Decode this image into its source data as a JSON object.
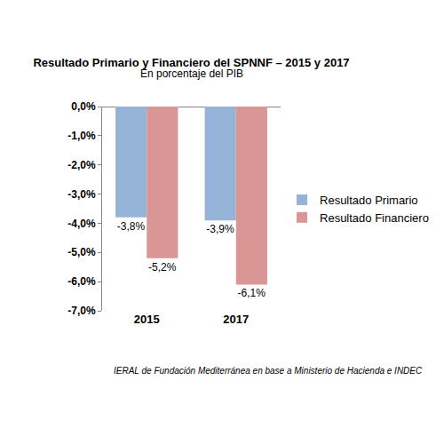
{
  "chart_data": {
    "type": "bar",
    "title": "Resultado Primario y Financiero del SPNNF – 2015 y 2017",
    "subtitle": "En porcentaje del PIB",
    "source": "IERAL de Fundación Mediterránea en base a Ministerio de Hacienda e INDEC",
    "categories": [
      "2015",
      "2017"
    ],
    "series": [
      {
        "name": "Resultado Primario",
        "color": "#95b3d7",
        "values": [
          -3.8,
          -3.9
        ],
        "value_labels": [
          "-3,8%",
          "-3,9%"
        ]
      },
      {
        "name": "Resultado Financiero",
        "color": "#d99694",
        "values": [
          -5.2,
          -6.1
        ],
        "value_labels": [
          "-5,2%",
          "-6,1%"
        ]
      }
    ],
    "ylim": [
      -7,
      0
    ],
    "yticks": [
      {
        "value": 0,
        "label": "0,0%"
      },
      {
        "value": -1,
        "label": "-1,0%"
      },
      {
        "value": -2,
        "label": "-2,0%"
      },
      {
        "value": -3,
        "label": "-3,0%"
      },
      {
        "value": -4,
        "label": "-4,0%"
      },
      {
        "value": -5,
        "label": "-5,0%"
      },
      {
        "value": -6,
        "label": "-6,0%"
      },
      {
        "value": -7,
        "label": "-7,0%"
      }
    ],
    "grid": false,
    "legend": "right",
    "data_labels": true
  }
}
